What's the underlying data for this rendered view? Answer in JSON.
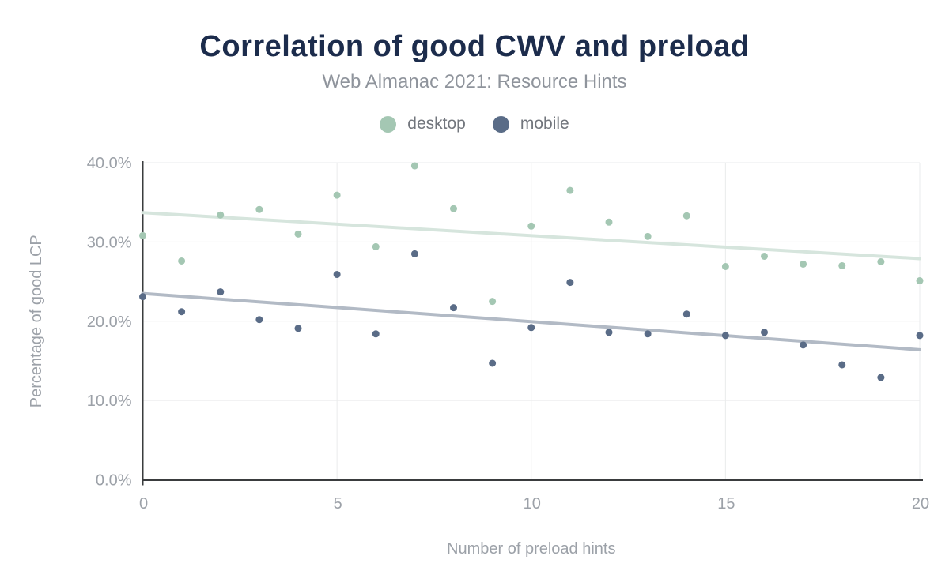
{
  "header": {
    "title": "Correlation of good CWV and preload",
    "subtitle": "Web Almanac 2021: Resource Hints"
  },
  "legend": [
    {
      "label": "desktop",
      "color": "#a4c7b3"
    },
    {
      "label": "mobile",
      "color": "#5a6c87"
    }
  ],
  "colors": {
    "title": "#1c2c4c",
    "subtitle": "#8f949c",
    "legend_text": "#72767d",
    "axis_text": "#9ca1a8",
    "grid": "#eaebec",
    "axis_line": "#3a3c3e",
    "desktop_point": "#a4c7b3",
    "mobile_point": "#5a6c87",
    "desktop_trend": "#d6e5dd",
    "mobile_trend": "#b2bac5"
  },
  "chart_data": {
    "type": "scatter",
    "title": "Correlation of good CWV and preload",
    "subtitle": "Web Almanac 2021: Resource Hints",
    "xlabel": "Number of preload hints",
    "ylabel": "Percentage of good LCP",
    "xlim": [
      0,
      20
    ],
    "ylim": [
      0,
      40
    ],
    "grid": true,
    "legend_position": "top",
    "x_ticks": [
      {
        "value": 0,
        "label": "0"
      },
      {
        "value": 5,
        "label": "5"
      },
      {
        "value": 10,
        "label": "10"
      },
      {
        "value": 15,
        "label": "15"
      },
      {
        "value": 20,
        "label": "20"
      }
    ],
    "y_ticks": [
      {
        "value": 0,
        "label": "0.0%"
      },
      {
        "value": 10,
        "label": "10.0%"
      },
      {
        "value": 20,
        "label": "20.0%"
      },
      {
        "value": 30,
        "label": "30.0%"
      },
      {
        "value": 40,
        "label": "40.0%"
      }
    ],
    "x": [
      0,
      1,
      2,
      3,
      4,
      5,
      6,
      7,
      8,
      9,
      10,
      11,
      12,
      13,
      14,
      15,
      16,
      17,
      18,
      19,
      20
    ],
    "series": [
      {
        "name": "desktop",
        "unit": "percent",
        "values": [
          30.8,
          27.6,
          33.4,
          34.1,
          31.0,
          35.9,
          29.4,
          39.6,
          34.2,
          22.5,
          32.0,
          36.5,
          32.5,
          30.7,
          33.3,
          26.9,
          28.2,
          27.2,
          27.0,
          27.5,
          25.1
        ]
      },
      {
        "name": "mobile",
        "unit": "percent",
        "values": [
          23.1,
          21.2,
          23.7,
          20.2,
          19.1,
          25.9,
          18.4,
          28.5,
          21.7,
          14.7,
          19.2,
          24.9,
          18.6,
          18.4,
          20.9,
          18.2,
          18.6,
          17.0,
          14.5,
          12.9,
          18.2
        ]
      }
    ],
    "trend_lines": [
      {
        "name": "desktop",
        "start": [
          0,
          33.7
        ],
        "end": [
          20,
          27.9
        ]
      },
      {
        "name": "mobile",
        "start": [
          0,
          23.5
        ],
        "end": [
          20,
          16.4
        ]
      }
    ]
  }
}
